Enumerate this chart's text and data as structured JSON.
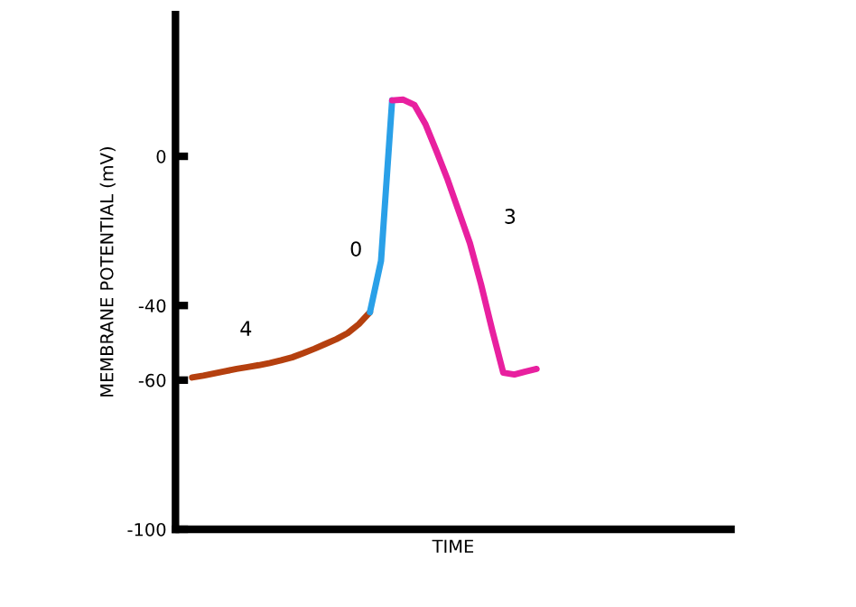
{
  "chart_data": {
    "type": "line",
    "xlabel": "TIME",
    "ylabel": "MEMBRANE POTENTIAL (mV)",
    "categories": [
      null,
      null,
      null,
      null,
      null,
      null,
      null,
      null,
      null,
      null,
      null,
      null,
      null,
      null,
      null,
      null,
      null,
      null,
      null,
      null,
      null,
      null,
      null,
      null,
      null,
      null,
      null,
      null,
      null,
      null,
      null,
      null,
      null,
      null,
      null,
      null,
      null,
      null,
      null,
      null,
      null,
      null,
      null,
      null,
      null,
      null,
      null,
      null,
      null,
      null
    ],
    "ylim": [
      -100,
      38
    ],
    "yticks": [
      0,
      {
        "value": -40,
        "label": "-40"
      },
      {
        "value": -60,
        "label": "-60"
      },
      {
        "value": -100,
        "label": "-100"
      }
    ],
    "tick_labels": "y",
    "grid": false,
    "legend": false,
    "marker": "none",
    "line_style": "solid",
    "series": [
      {
        "name": "4",
        "color": "#b5400f",
        "values": [
          null,
          -59.3,
          -58.8,
          -58.2,
          -57.6,
          -57.0,
          -56.5,
          -56.0,
          -55.4,
          -54.7,
          -53.9,
          -52.8,
          -51.6,
          -50.3,
          -49.0,
          -47.4,
          -45.0,
          -41.8,
          null,
          null,
          null,
          null,
          null,
          null,
          null,
          null,
          null,
          null,
          null,
          null,
          null,
          null,
          null,
          null,
          null,
          null,
          null,
          null,
          null,
          null,
          null,
          null,
          null,
          null,
          null,
          null,
          null,
          null,
          null,
          null
        ]
      },
      {
        "name": "0",
        "color": "#2aa0e8",
        "values": [
          null,
          null,
          null,
          null,
          null,
          null,
          null,
          null,
          null,
          null,
          null,
          null,
          null,
          null,
          null,
          null,
          null,
          -41.8,
          -28,
          15,
          null,
          null,
          null,
          null,
          null,
          null,
          null,
          null,
          null,
          null,
          null,
          null,
          null,
          null,
          null,
          null,
          null,
          null,
          null,
          null,
          null,
          null,
          null,
          null,
          null,
          null,
          null,
          null,
          null,
          null
        ]
      },
      {
        "name": "3",
        "color": "#e8209f",
        "values": [
          null,
          null,
          null,
          null,
          null,
          null,
          null,
          null,
          null,
          null,
          null,
          null,
          null,
          null,
          null,
          null,
          null,
          null,
          null,
          15,
          15.2,
          13.8,
          8.6,
          1.3,
          -6.3,
          -14.8,
          -23.3,
          -34.3,
          -46.5,
          -58,
          -58.5,
          -57.7,
          -57.0,
          null,
          null,
          null,
          null,
          null,
          null,
          null,
          null,
          null,
          null,
          null,
          null,
          null,
          null,
          null,
          null,
          null
        ]
      }
    ]
  }
}
